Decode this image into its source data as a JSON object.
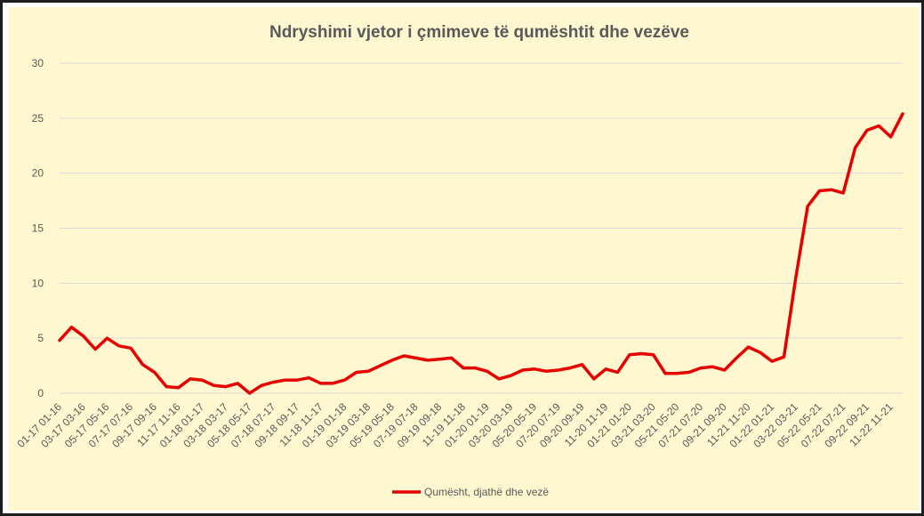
{
  "chart_data": {
    "type": "line",
    "title": "Ndryshimi vjetor i çmimeve të qumështit dhe vezëve",
    "xlabel": "",
    "ylabel": "",
    "ylim": [
      0,
      30
    ],
    "yticks": [
      "0",
      "5",
      "10",
      "15",
      "20",
      "25",
      "30"
    ],
    "grid": true,
    "legend_position": "bottom",
    "x_tick_labels": [
      "01-17 01-16",
      "03-17 03-16",
      "05-17 05-16",
      "07-17 07-16",
      "09-17 09-16",
      "11-17 11-16",
      "01-18 01-17",
      "03-18 03-17",
      "05-18 05-17",
      "07-18 07-17",
      "09-18 09-17",
      "11-18 11-17",
      "01-19 01-18",
      "03-19 03-18",
      "05-19 05-18",
      "07-19 07-18",
      "09-19 09-18",
      "11-19 11-18",
      "01-20 01-19",
      "03-20 03-19",
      "05-20 05-19",
      "07-20 07-19",
      "09-20 09-19",
      "11-20 11-19",
      "01-21 01-20",
      "03-21 03-20",
      "05-21 05-20",
      "07-21 07-20",
      "09-21 09-20",
      "11-21 11-20",
      "01-22 01-21",
      "03-22 03-21",
      "05-22 05-21",
      "07-22 07-21",
      "09-22 09-21",
      "11-22 11-21"
    ],
    "series": [
      {
        "name": "Qumësht, djathë dhe vezë",
        "color": "#E60000",
        "values": [
          4.8,
          6.0,
          5.2,
          4.0,
          5.0,
          4.3,
          4.1,
          2.6,
          1.9,
          0.6,
          0.5,
          1.3,
          1.2,
          0.7,
          0.6,
          0.9,
          0.0,
          0.7,
          1.0,
          1.2,
          1.2,
          1.4,
          0.9,
          0.9,
          1.2,
          1.9,
          2.0,
          2.5,
          3.0,
          3.4,
          3.2,
          3.0,
          3.1,
          3.2,
          2.3,
          2.3,
          2.0,
          1.3,
          1.6,
          2.1,
          2.2,
          2.0,
          2.1,
          2.3,
          2.6,
          1.3,
          2.2,
          1.9,
          3.5,
          3.6,
          3.5,
          1.8,
          1.8,
          1.9,
          2.3,
          2.4,
          2.1,
          3.2,
          4.2,
          3.7,
          2.9,
          3.3,
          10.5,
          17.0,
          18.4,
          18.5,
          18.2,
          22.3,
          23.9,
          24.3,
          23.3,
          25.4
        ]
      }
    ]
  }
}
